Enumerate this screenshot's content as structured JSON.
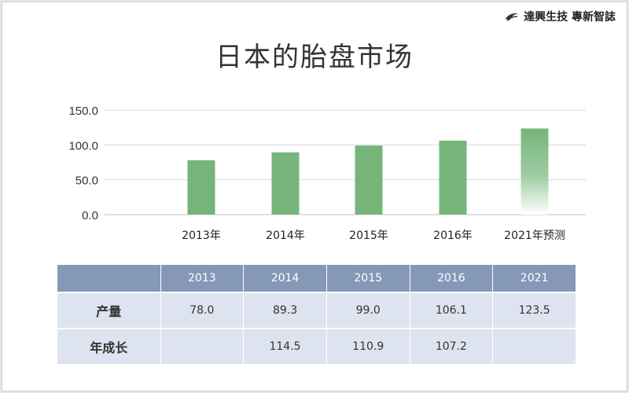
{
  "brand": {
    "text": "達興生技 專新智誌"
  },
  "chart_data": {
    "type": "bar",
    "title": "日本的胎盘市场",
    "categories": [
      "2013年",
      "2014年",
      "2015年",
      "2016年",
      "2021年预测"
    ],
    "values": [
      78.0,
      89.3,
      99.0,
      106.1,
      123.5
    ],
    "ylim": [
      0,
      150
    ],
    "yticks": [
      "0.0",
      "50.0",
      "100.0",
      "150.0"
    ],
    "xlabel": "",
    "ylabel": "",
    "grid": true,
    "bar_color": "#76b57a",
    "forecast_index": 4
  },
  "table": {
    "headers": [
      "",
      "2013",
      "2014",
      "2015",
      "2016",
      "2021"
    ],
    "rows": [
      {
        "label": "产量",
        "cells": [
          "78.0",
          "89.3",
          "99.0",
          "106.1",
          "123.5"
        ]
      },
      {
        "label": "年成长",
        "cells": [
          "",
          "114.5",
          "110.9",
          "107.2",
          ""
        ]
      }
    ],
    "header_color": "#8598b8",
    "cell_color": "#dde4f0"
  }
}
